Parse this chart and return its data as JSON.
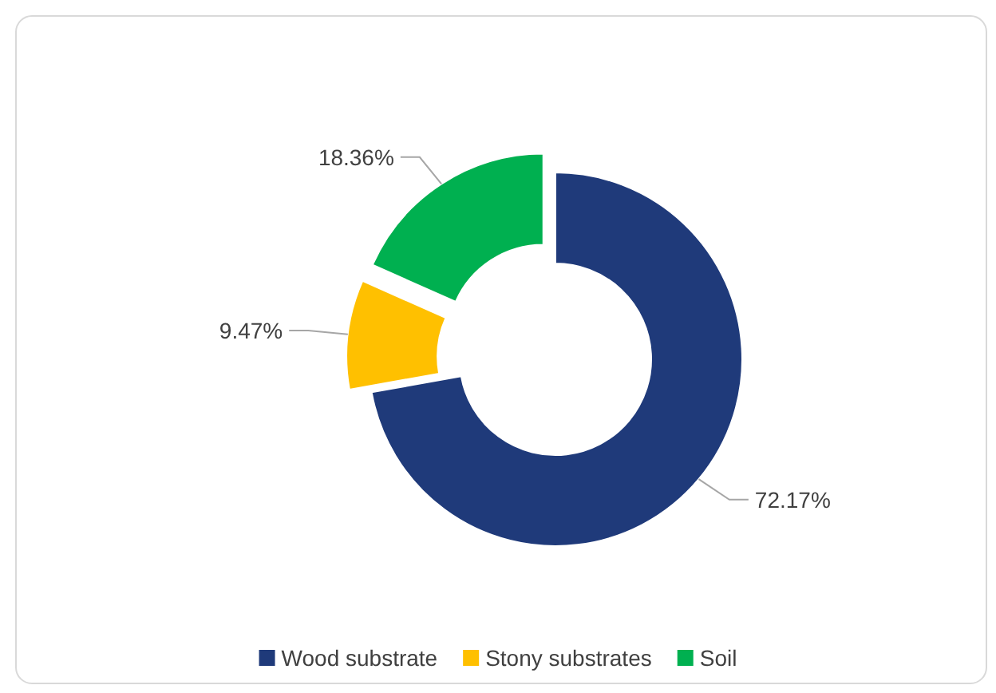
{
  "chart_data": {
    "type": "donut",
    "categories": [
      "Wood substrate",
      "Stony substrates",
      "Soil"
    ],
    "values": [
      72.17,
      9.47,
      18.36
    ],
    "colors": [
      "#1f3a7a",
      "#ffc000",
      "#00b050"
    ],
    "value_labels": [
      "72.17%",
      "9.47%",
      "18.36%"
    ],
    "legend": "bottom"
  }
}
